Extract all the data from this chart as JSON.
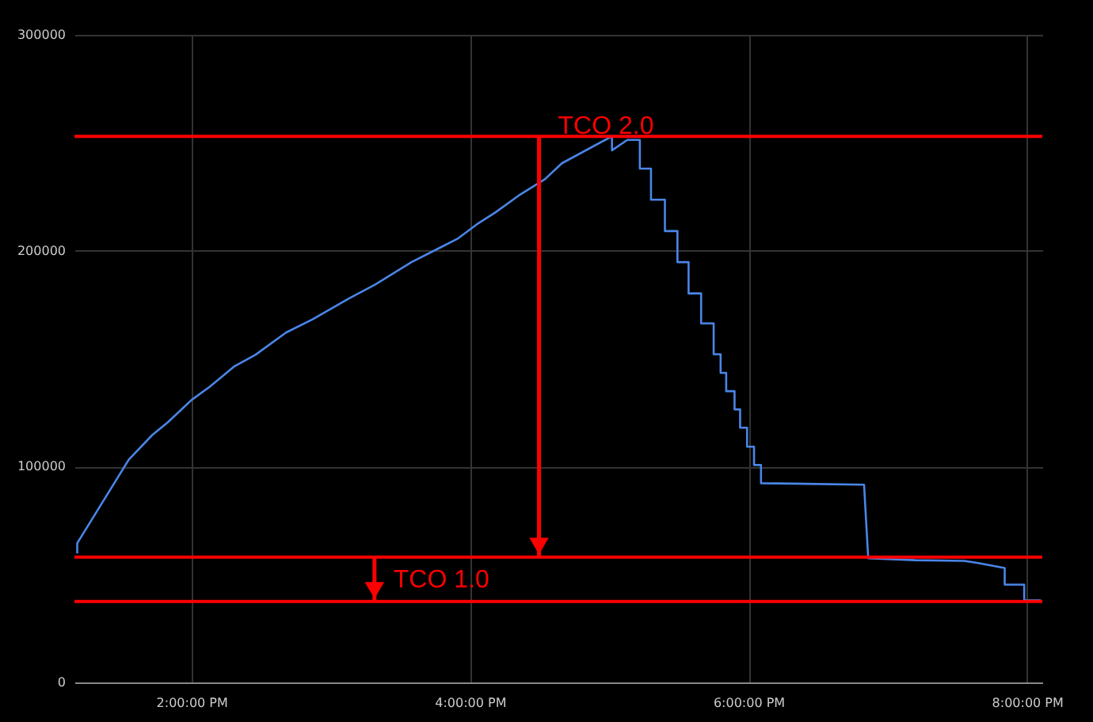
{
  "chart_data": {
    "type": "line",
    "x": [
      13.18,
      13.18,
      13.55,
      13.72,
      13.83,
      14.0,
      14.13,
      14.31,
      14.46,
      14.68,
      14.87,
      15.13,
      15.32,
      15.58,
      15.8,
      15.91,
      16.06,
      16.18,
      16.36,
      16.54,
      16.66,
      17.02,
      17.02,
      17.13,
      17.22,
      17.22,
      17.3,
      17.3,
      17.4,
      17.4,
      17.49,
      17.49,
      17.57,
      17.57,
      17.66,
      17.66,
      17.75,
      17.75,
      17.8,
      17.8,
      17.84,
      17.84,
      17.9,
      17.9,
      17.94,
      17.94,
      17.99,
      17.99,
      18.04,
      18.04,
      18.09,
      18.09,
      18.83,
      18.86,
      19.2,
      19.55,
      19.65,
      19.84,
      19.84,
      19.98,
      19.98,
      20.1
    ],
    "series": [
      {
        "color": "#4a86e8",
        "values": [
          59800,
          64500,
          103200,
          114700,
          120500,
          130800,
          136900,
          146500,
          151800,
          162100,
          168200,
          177800,
          184300,
          194700,
          201900,
          205500,
          212700,
          217600,
          226000,
          233200,
          240500,
          253000,
          246500,
          251300,
          251300,
          238000,
          238000,
          223600,
          223600,
          209100,
          209100,
          194700,
          194700,
          180200,
          180200,
          166300,
          166300,
          152000,
          152000,
          143400,
          143400,
          134900,
          134900,
          126500,
          126500,
          118000,
          118000,
          109200,
          109200,
          100700,
          100700,
          92300,
          91600,
          57500,
          56600,
          56300,
          55300,
          53000,
          45300,
          45300,
          38000,
          38000
        ]
      }
    ],
    "xlim": [
      13.16,
      20.11
    ],
    "xticks": [
      {
        "value": 14,
        "label": "2:00:00 PM"
      },
      {
        "value": 16,
        "label": "4:00:00 PM"
      },
      {
        "value": 18,
        "label": "6:00:00 PM"
      },
      {
        "value": 20,
        "label": "8:00:00 PM"
      }
    ],
    "ylim": [
      0,
      300000
    ],
    "yticks": [
      0,
      100000,
      200000,
      300000
    ],
    "grid": true,
    "ref_lines": [
      {
        "axis": "y",
        "value": 253000,
        "color": "#ff0000"
      },
      {
        "axis": "y",
        "value": 58000,
        "color": "#ff0000"
      },
      {
        "axis": "y",
        "value": 37500,
        "color": "#ff0000"
      }
    ],
    "annotations": [
      "TCO 2.0",
      "TCO 1.0"
    ]
  }
}
